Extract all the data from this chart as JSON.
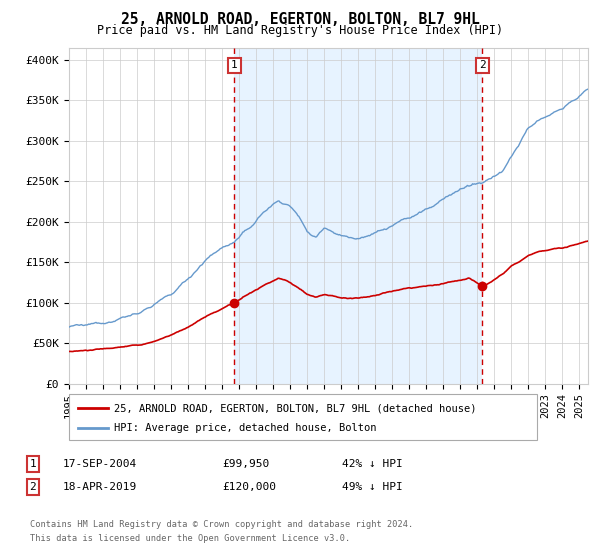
{
  "title": "25, ARNOLD ROAD, EGERTON, BOLTON, BL7 9HL",
  "subtitle": "Price paid vs. HM Land Registry's House Price Index (HPI)",
  "ylabel_ticks": [
    "£0",
    "£50K",
    "£100K",
    "£150K",
    "£200K",
    "£250K",
    "£300K",
    "£350K",
    "£400K"
  ],
  "ytick_values": [
    0,
    50000,
    100000,
    150000,
    200000,
    250000,
    300000,
    350000,
    400000
  ],
  "ylim": [
    0,
    415000
  ],
  "xlim_start": 1995.0,
  "xlim_end": 2025.5,
  "sale1_x": 2004.72,
  "sale1_y": 99950,
  "sale2_x": 2019.3,
  "sale2_y": 120000,
  "legend_line1": "25, ARNOLD ROAD, EGERTON, BOLTON, BL7 9HL (detached house)",
  "legend_line2": "HPI: Average price, detached house, Bolton",
  "row1_label": "1",
  "row1_date": "17-SEP-2004",
  "row1_amount": "£99,950",
  "row1_pct": "42% ↓ HPI",
  "row2_label": "2",
  "row2_date": "18-APR-2019",
  "row2_amount": "£120,000",
  "row2_pct": "49% ↓ HPI",
  "footer1": "Contains HM Land Registry data © Crown copyright and database right 2024.",
  "footer2": "This data is licensed under the Open Government Licence v3.0.",
  "red_color": "#cc0000",
  "blue_color": "#6699cc",
  "fill_color": "#ddeeff",
  "dashed_color": "#cc0000",
  "bg_color": "#ffffff",
  "grid_color": "#cccccc",
  "box_edge_color": "#cc3333"
}
